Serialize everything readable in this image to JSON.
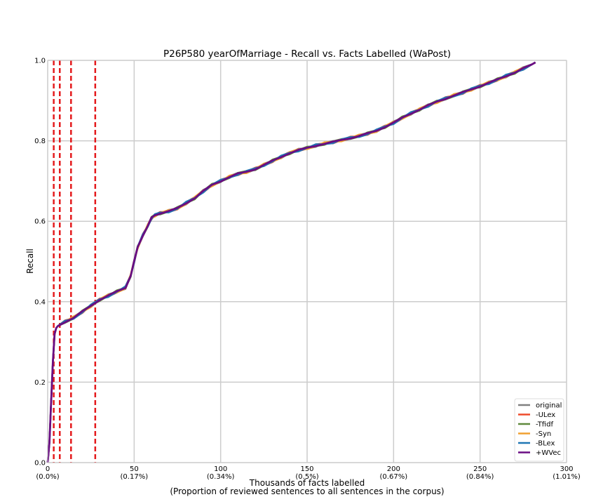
{
  "chart_data": {
    "type": "line",
    "title": "P26P580 yearOfMarriage - Recall vs. Facts Labelled (WaPost)",
    "xlabel": "Thousands of facts labelled",
    "xlabel2": "(Proportion of reviewed sentences to all sentences in the corpus)",
    "ylabel": "Recall",
    "xlim": [
      0,
      300
    ],
    "ylim": [
      0,
      1.0
    ],
    "grid": true,
    "legend_position": "lower-right",
    "x_ticks": [
      {
        "value": 0,
        "label": "0",
        "sublabel": "(0.0%)"
      },
      {
        "value": 50,
        "label": "50",
        "sublabel": "(0.17%)"
      },
      {
        "value": 100,
        "label": "100",
        "sublabel": "(0.34%)"
      },
      {
        "value": 150,
        "label": "150",
        "sublabel": "(0.5%)"
      },
      {
        "value": 200,
        "label": "200",
        "sublabel": "(0.67%)"
      },
      {
        "value": 250,
        "label": "250",
        "sublabel": "(0.84%)"
      },
      {
        "value": 300,
        "label": "300",
        "sublabel": "(1.01%)"
      }
    ],
    "y_ticks": [
      {
        "value": 0.0,
        "label": "0.0"
      },
      {
        "value": 0.2,
        "label": "0.2"
      },
      {
        "value": 0.4,
        "label": "0.4"
      },
      {
        "value": 0.6,
        "label": "0.6"
      },
      {
        "value": 0.8,
        "label": "0.8"
      },
      {
        "value": 1.0,
        "label": "1.0"
      }
    ],
    "vertical_lines": {
      "color": "#e41a1c",
      "style": "dashed",
      "x": [
        3.5,
        7,
        13.5,
        27.5
      ]
    },
    "base_curve": {
      "x": [
        0,
        1,
        2,
        3,
        4,
        5,
        6,
        10,
        15,
        20,
        25,
        30,
        35,
        40,
        45,
        48,
        50,
        52,
        55,
        58,
        60,
        62,
        65,
        70,
        75,
        80,
        85,
        90,
        95,
        100,
        105,
        110,
        115,
        120,
        125,
        130,
        135,
        140,
        145,
        150,
        155,
        160,
        165,
        170,
        175,
        180,
        185,
        190,
        195,
        200,
        205,
        210,
        215,
        220,
        225,
        230,
        235,
        240,
        245,
        250,
        255,
        260,
        265,
        270,
        275,
        280,
        282
      ],
      "y": [
        0.0,
        0.05,
        0.15,
        0.25,
        0.32,
        0.335,
        0.34,
        0.35,
        0.36,
        0.375,
        0.39,
        0.405,
        0.415,
        0.425,
        0.435,
        0.465,
        0.5,
        0.535,
        0.565,
        0.59,
        0.608,
        0.615,
        0.62,
        0.625,
        0.632,
        0.645,
        0.658,
        0.675,
        0.69,
        0.7,
        0.71,
        0.718,
        0.723,
        0.73,
        0.74,
        0.75,
        0.76,
        0.77,
        0.777,
        0.782,
        0.788,
        0.793,
        0.797,
        0.802,
        0.807,
        0.812,
        0.818,
        0.825,
        0.835,
        0.845,
        0.857,
        0.868,
        0.878,
        0.888,
        0.897,
        0.905,
        0.913,
        0.92,
        0.928,
        0.936,
        0.944,
        0.952,
        0.961,
        0.97,
        0.98,
        0.99,
        0.995
      ]
    },
    "series": [
      {
        "name": "original",
        "color": "#808080"
      },
      {
        "name": "-ULex",
        "color": "#ee4b2b"
      },
      {
        "name": "-Tfidf",
        "color": "#5f8a3c"
      },
      {
        "name": "-Syn",
        "color": "#f0a030"
      },
      {
        "name": "-BLex",
        "color": "#1f77b4"
      },
      {
        "name": "+WVec",
        "color": "#6a0d83"
      }
    ]
  }
}
